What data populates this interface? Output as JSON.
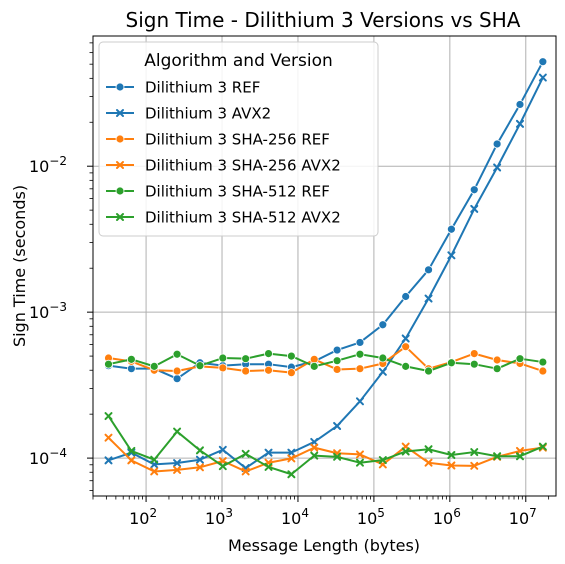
{
  "chart_data": {
    "type": "line",
    "title": "Sign Time - Dilithium 3 Versions vs SHA",
    "xlabel": "Message Length (bytes)",
    "ylabel": "Sign Time (seconds)",
    "x_scale": "log",
    "y_scale": "log",
    "xlim": [
      20,
      25000000
    ],
    "ylim": [
      5.5e-05,
      0.078
    ],
    "grid": true,
    "legend": {
      "title": "Algorithm and Version",
      "placement": "top-left"
    },
    "x_ticks": [
      {
        "value": 100,
        "base": "10",
        "exp": "2"
      },
      {
        "value": 1000,
        "base": "10",
        "exp": "3"
      },
      {
        "value": 10000,
        "base": "10",
        "exp": "4"
      },
      {
        "value": 100000,
        "base": "10",
        "exp": "5"
      },
      {
        "value": 1000000,
        "base": "10",
        "exp": "6"
      },
      {
        "value": 10000000,
        "base": "10",
        "exp": "7"
      }
    ],
    "y_ticks": [
      {
        "value": 0.0001,
        "base": "10",
        "exp": "−4"
      },
      {
        "value": 0.001,
        "base": "10",
        "exp": "−3"
      },
      {
        "value": 0.01,
        "base": "10",
        "exp": "−2"
      }
    ],
    "x": [
      32,
      64,
      128,
      256,
      512,
      1024,
      2048,
      4096,
      8192,
      16384,
      32768,
      65536,
      131072,
      262144,
      524288,
      1048576,
      2097152,
      4194304,
      8388608,
      16777216
    ],
    "series": [
      {
        "name": "Dilithium 3 REF",
        "color": "#1f77b4",
        "marker": "circle",
        "values": [
          0.00043,
          0.00041,
          0.00041,
          0.00035,
          0.00045,
          0.00043,
          0.00044,
          0.00044,
          0.00042,
          0.00046,
          0.00055,
          0.00062,
          0.00082,
          0.00128,
          0.00195,
          0.0037,
          0.0069,
          0.0142,
          0.0265,
          0.052
        ]
      },
      {
        "name": "Dilithium 3 AVX2",
        "color": "#1f77b4",
        "marker": "x",
        "values": [
          9.65e-05,
          0.000109,
          9.05e-05,
          9.25e-05,
          9.75e-05,
          0.000114,
          8.55e-05,
          0.000109,
          0.000109,
          0.000129,
          0.000166,
          0.000245,
          0.00039,
          0.00066,
          0.00124,
          0.00245,
          0.0051,
          0.0098,
          0.0195,
          0.0405
        ]
      },
      {
        "name": "Dilithium 3 SHA-256 REF",
        "color": "#ff7f0e",
        "marker": "circle",
        "values": [
          0.000485,
          0.00046,
          0.0004,
          0.000395,
          0.000425,
          0.000415,
          0.000395,
          0.0004,
          0.000385,
          0.000475,
          0.000405,
          0.00041,
          0.000445,
          0.00058,
          0.00041,
          0.000455,
          0.00052,
          0.00047,
          0.000445,
          0.000395
        ]
      },
      {
        "name": "Dilithium 3 SHA-256 AVX2",
        "color": "#ff7f0e",
        "marker": "x",
        "values": [
          0.000138,
          9.65e-05,
          8.1e-05,
          8.3e-05,
          8.65e-05,
          9.55e-05,
          8.1e-05,
          9.3e-05,
          9.95e-05,
          0.000118,
          0.000108,
          0.000106,
          9.05e-05,
          0.00012,
          9.3e-05,
          8.9e-05,
          8.85e-05,
          0.000102,
          0.000112,
          0.000118
        ]
      },
      {
        "name": "Dilithium 3 SHA-512 REF",
        "color": "#2ca02c",
        "marker": "circle",
        "values": [
          0.00044,
          0.000475,
          0.000425,
          0.000515,
          0.00043,
          0.000485,
          0.00048,
          0.00052,
          0.0005,
          0.000425,
          0.000465,
          0.000515,
          0.000485,
          0.000425,
          0.000395,
          0.00045,
          0.00044,
          0.00041,
          0.00048,
          0.000455
        ]
      },
      {
        "name": "Dilithium 3 SHA-512 AVX2",
        "color": "#2ca02c",
        "marker": "x",
        "values": [
          0.000194,
          0.000112,
          9.75e-05,
          0.000152,
          0.000113,
          8.8e-05,
          0.000107,
          8.7e-05,
          7.75e-05,
          0.000104,
          0.000102,
          9.3e-05,
          9.7e-05,
          0.000111,
          0.000115,
          0.000105,
          0.00011,
          0.000103,
          0.000103,
          0.00012
        ]
      }
    ]
  }
}
